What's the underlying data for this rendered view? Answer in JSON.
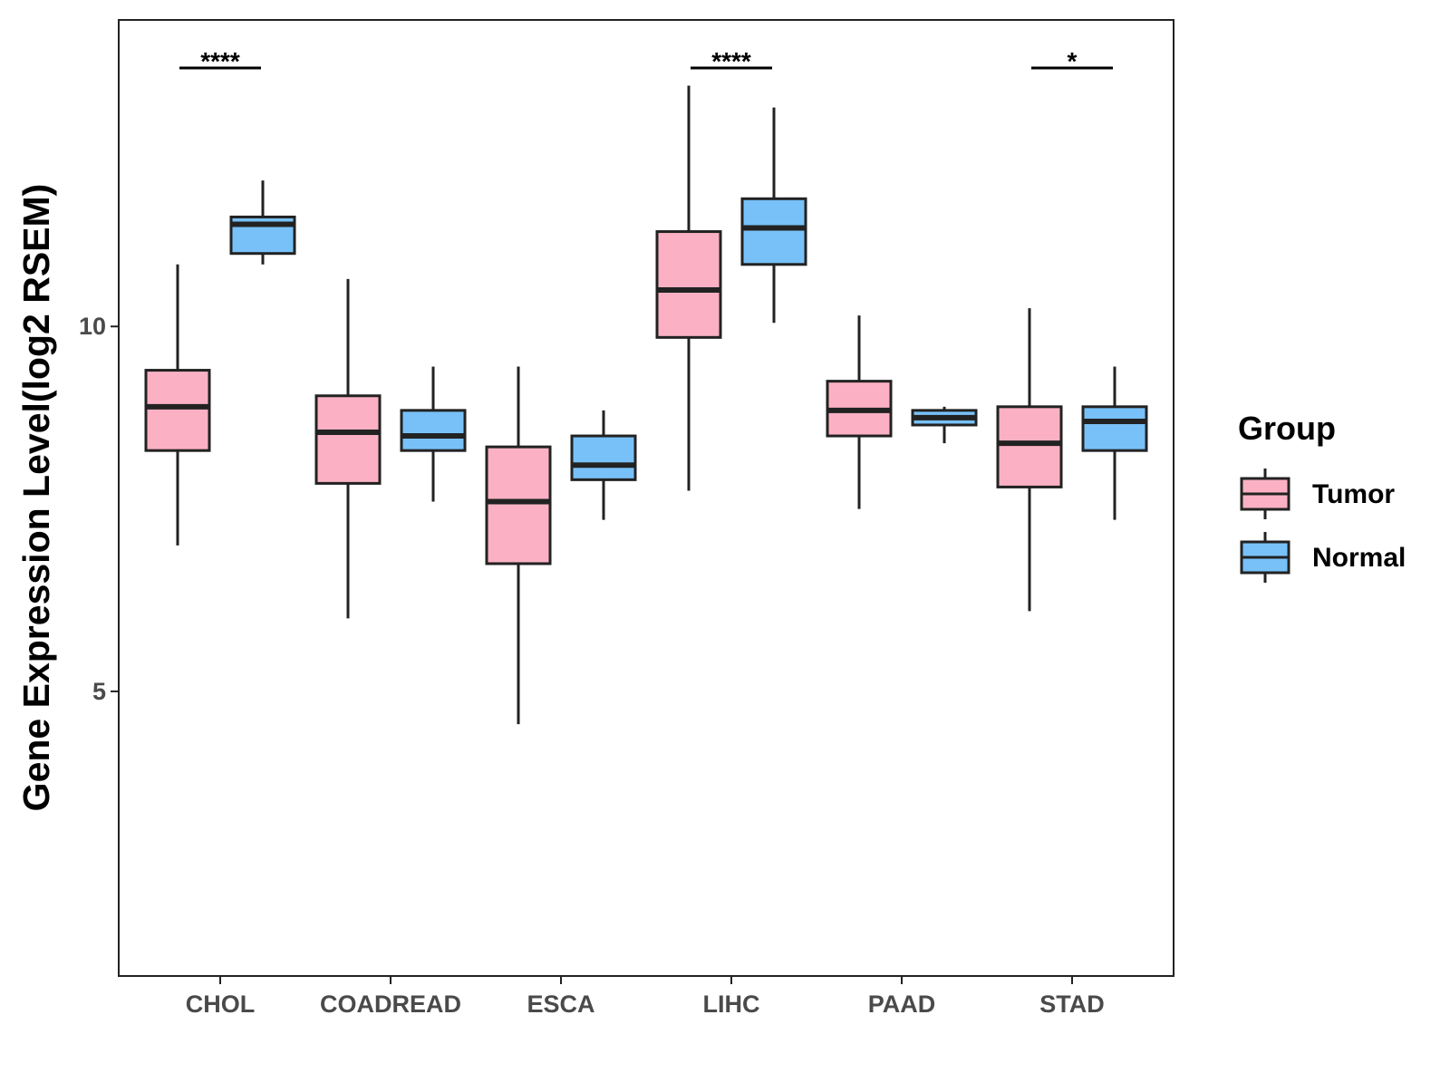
{
  "chart_data": {
    "type": "boxplot",
    "title": "",
    "xlabel": "",
    "ylabel": "Gene Expression Level(log2 RSEM)",
    "ylim": [
      1.1,
      14.2
    ],
    "yticks": [
      {
        "value": 5,
        "label": "5"
      },
      {
        "value": 10,
        "label": "10"
      }
    ],
    "categories": [
      "CHOL",
      "COADREAD",
      "ESCA",
      "LIHC",
      "PAAD",
      "STAD"
    ],
    "grid": false,
    "legend": {
      "title": "Group",
      "position": "right",
      "entries": [
        {
          "label": "Tumor",
          "color": "#FBB1C3"
        },
        {
          "label": "Normal",
          "color": "#78C1F8"
        }
      ]
    },
    "series": [
      {
        "name": "Tumor",
        "color": "#FBB1C3",
        "boxes": [
          {
            "category": "CHOL",
            "min": 7.0,
            "q1": 8.3,
            "median": 8.9,
            "q3": 9.4,
            "max": 10.85
          },
          {
            "category": "COADREAD",
            "min": 6.0,
            "q1": 7.85,
            "median": 8.55,
            "q3": 9.05,
            "max": 10.65
          },
          {
            "category": "ESCA",
            "min": 4.55,
            "q1": 6.75,
            "median": 7.6,
            "q3": 8.35,
            "max": 9.45
          },
          {
            "category": "LIHC",
            "min": 7.75,
            "q1": 9.85,
            "median": 10.5,
            "q3": 11.3,
            "max": 13.3
          },
          {
            "category": "PAAD",
            "min": 7.5,
            "q1": 8.5,
            "median": 8.85,
            "q3": 9.25,
            "max": 10.15
          },
          {
            "category": "STAD",
            "min": 6.1,
            "q1": 7.8,
            "median": 8.4,
            "q3": 8.9,
            "max": 10.25
          }
        ]
      },
      {
        "name": "Normal",
        "color": "#78C1F8",
        "boxes": [
          {
            "category": "CHOL",
            "min": 10.85,
            "q1": 11.0,
            "median": 11.4,
            "q3": 11.5,
            "max": 12.0
          },
          {
            "category": "COADREAD",
            "min": 7.6,
            "q1": 8.3,
            "median": 8.5,
            "q3": 8.85,
            "max": 9.45
          },
          {
            "category": "ESCA",
            "min": 7.35,
            "q1": 7.9,
            "median": 8.1,
            "q3": 8.5,
            "max": 8.85
          },
          {
            "category": "LIHC",
            "min": 10.05,
            "q1": 10.85,
            "median": 11.35,
            "q3": 11.75,
            "max": 13.0
          },
          {
            "category": "PAAD",
            "min": 8.4,
            "q1": 8.65,
            "median": 8.75,
            "q3": 8.85,
            "max": 8.9
          },
          {
            "category": "STAD",
            "min": 7.35,
            "q1": 8.3,
            "median": 8.7,
            "q3": 8.9,
            "max": 9.45
          }
        ]
      }
    ],
    "annotations": [
      {
        "category": "CHOL",
        "label": "****"
      },
      {
        "category": "LIHC",
        "label": "****"
      },
      {
        "category": "STAD",
        "label": "*"
      }
    ]
  }
}
